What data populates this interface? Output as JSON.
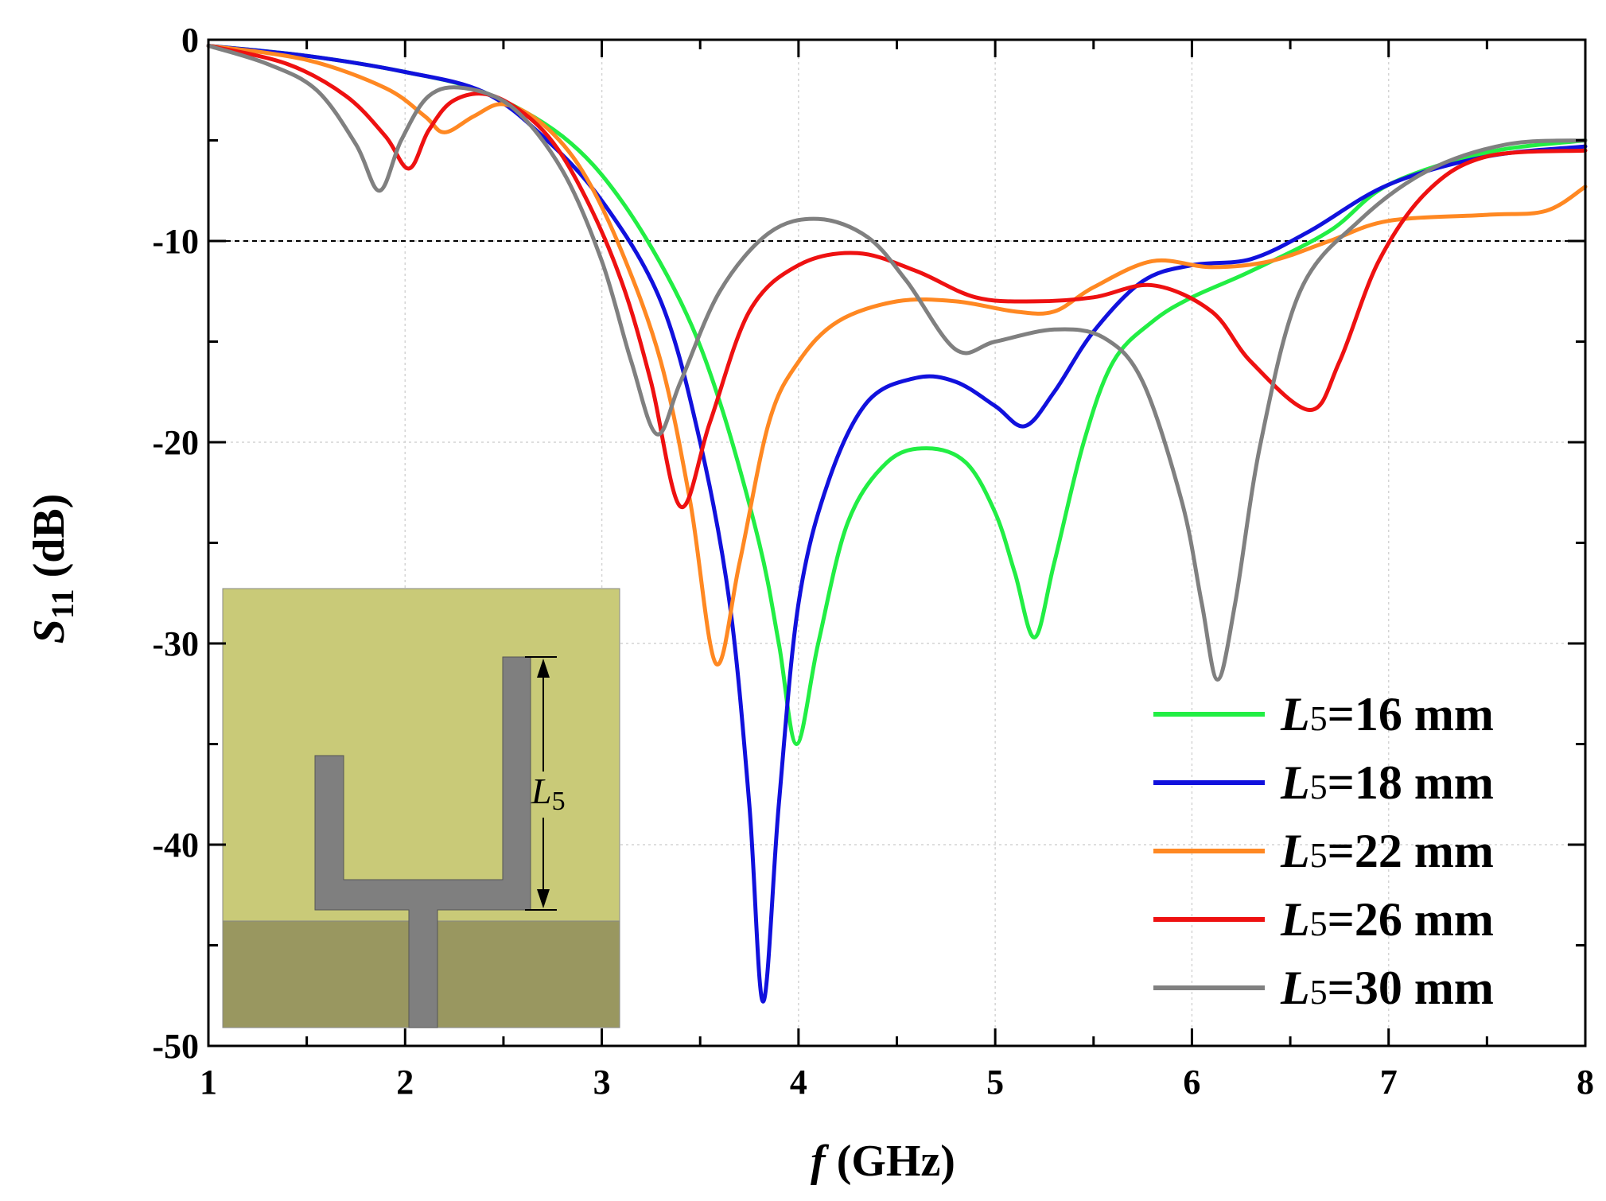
{
  "chart_data": {
    "type": "line",
    "title": "",
    "xlabel": "f (GHz)",
    "xlabel_italic": "f",
    "xlabel_rest": " (GHz)",
    "ylabel_main": "S",
    "ylabel_sub": "11",
    "ylabel_rest": " (dB)",
    "xlim": [
      1,
      8
    ],
    "ylim": [
      -50,
      0
    ],
    "xticks": [
      1,
      2,
      3,
      4,
      5,
      6,
      7,
      8
    ],
    "yticks": [
      0,
      -10,
      -20,
      -30,
      -40,
      -50
    ],
    "xtick_labels": [
      "1",
      "2",
      "3",
      "4",
      "5",
      "6",
      "7",
      "8"
    ],
    "ytick_labels": [
      "0",
      "-10",
      "-20",
      "-30",
      "-40",
      "-50"
    ],
    "reference_line_y": -10,
    "grid": true,
    "legend_position": "bottom-right",
    "series": [
      {
        "name": "L5=16 mm",
        "param": "L",
        "sub": "5",
        "value": "=16 mm",
        "color": "#22ee44",
        "points": [
          [
            1,
            -0.3
          ],
          [
            1.5,
            -0.8
          ],
          [
            2,
            -1.6
          ],
          [
            2.4,
            -2.6
          ],
          [
            2.8,
            -4.8
          ],
          [
            3.1,
            -8
          ],
          [
            3.4,
            -13
          ],
          [
            3.6,
            -18
          ],
          [
            3.8,
            -25
          ],
          [
            3.9,
            -30
          ],
          [
            3.99,
            -35
          ],
          [
            4.1,
            -30
          ],
          [
            4.25,
            -24
          ],
          [
            4.45,
            -21
          ],
          [
            4.65,
            -20.3
          ],
          [
            4.85,
            -21
          ],
          [
            5.0,
            -23.5
          ],
          [
            5.1,
            -26.5
          ],
          [
            5.2,
            -29.7
          ],
          [
            5.3,
            -26
          ],
          [
            5.45,
            -20
          ],
          [
            5.6,
            -16
          ],
          [
            5.8,
            -14
          ],
          [
            6.0,
            -12.8
          ],
          [
            6.3,
            -11.5
          ],
          [
            6.7,
            -9.5
          ],
          [
            7.0,
            -7.2
          ],
          [
            7.5,
            -5.6
          ],
          [
            8,
            -5
          ]
        ]
      },
      {
        "name": "L5=18 mm",
        "param": "L",
        "sub": "5",
        "value": "=18 mm",
        "color": "#1111dd",
        "points": [
          [
            1,
            -0.3
          ],
          [
            1.5,
            -0.8
          ],
          [
            2,
            -1.6
          ],
          [
            2.4,
            -2.6
          ],
          [
            2.7,
            -4.8
          ],
          [
            3.0,
            -8
          ],
          [
            3.3,
            -13
          ],
          [
            3.5,
            -20
          ],
          [
            3.65,
            -28
          ],
          [
            3.75,
            -38
          ],
          [
            3.82,
            -47.8
          ],
          [
            3.9,
            -38
          ],
          [
            4.0,
            -28
          ],
          [
            4.15,
            -22
          ],
          [
            4.35,
            -18
          ],
          [
            4.6,
            -16.8
          ],
          [
            4.8,
            -17
          ],
          [
            5.0,
            -18.2
          ],
          [
            5.15,
            -19.2
          ],
          [
            5.3,
            -17.5
          ],
          [
            5.5,
            -14.5
          ],
          [
            5.75,
            -12
          ],
          [
            6.0,
            -11.2
          ],
          [
            6.3,
            -10.9
          ],
          [
            6.6,
            -9.5
          ],
          [
            7.0,
            -7.2
          ],
          [
            7.5,
            -5.8
          ],
          [
            8,
            -5.3
          ]
        ]
      },
      {
        "name": "L5=22 mm",
        "param": "L",
        "sub": "5",
        "value": "=22 mm",
        "color": "#ff8822",
        "points": [
          [
            1,
            -0.3
          ],
          [
            1.5,
            -1
          ],
          [
            1.9,
            -2.4
          ],
          [
            2.1,
            -3.8
          ],
          [
            2.2,
            -4.6
          ],
          [
            2.35,
            -3.8
          ],
          [
            2.5,
            -3.2
          ],
          [
            2.7,
            -4.2
          ],
          [
            2.9,
            -6.5
          ],
          [
            3.1,
            -10.5
          ],
          [
            3.3,
            -16
          ],
          [
            3.45,
            -23
          ],
          [
            3.58,
            -31
          ],
          [
            3.7,
            -26
          ],
          [
            3.85,
            -19
          ],
          [
            4.0,
            -16
          ],
          [
            4.2,
            -14
          ],
          [
            4.5,
            -13
          ],
          [
            4.8,
            -13
          ],
          [
            5.1,
            -13.5
          ],
          [
            5.3,
            -13.5
          ],
          [
            5.5,
            -12.3
          ],
          [
            5.8,
            -11
          ],
          [
            6.1,
            -11.3
          ],
          [
            6.4,
            -11
          ],
          [
            6.7,
            -10
          ],
          [
            7.0,
            -9
          ],
          [
            7.5,
            -8.7
          ],
          [
            7.8,
            -8.5
          ],
          [
            8,
            -7.3
          ]
        ]
      },
      {
        "name": "L5=26 mm",
        "param": "L",
        "sub": "5",
        "value": "=26 mm",
        "color": "#ee1111",
        "points": [
          [
            1,
            -0.3
          ],
          [
            1.4,
            -1.2
          ],
          [
            1.7,
            -2.8
          ],
          [
            1.9,
            -4.8
          ],
          [
            2.02,
            -6.4
          ],
          [
            2.12,
            -4.5
          ],
          [
            2.25,
            -3
          ],
          [
            2.45,
            -2.8
          ],
          [
            2.7,
            -4.5
          ],
          [
            2.9,
            -7.5
          ],
          [
            3.1,
            -12
          ],
          [
            3.25,
            -17
          ],
          [
            3.4,
            -23.2
          ],
          [
            3.55,
            -19
          ],
          [
            3.75,
            -13.5
          ],
          [
            4.0,
            -11.2
          ],
          [
            4.3,
            -10.6
          ],
          [
            4.6,
            -11.5
          ],
          [
            4.9,
            -12.8
          ],
          [
            5.2,
            -13
          ],
          [
            5.5,
            -12.8
          ],
          [
            5.8,
            -12.2
          ],
          [
            6.1,
            -13.5
          ],
          [
            6.3,
            -16
          ],
          [
            6.6,
            -18.4
          ],
          [
            6.75,
            -16
          ],
          [
            6.95,
            -11
          ],
          [
            7.2,
            -7.5
          ],
          [
            7.5,
            -5.8
          ],
          [
            8,
            -5.5
          ]
        ]
      },
      {
        "name": "L5=30 mm",
        "param": "L",
        "sub": "5",
        "value": "=30 mm",
        "color": "#808080",
        "points": [
          [
            1,
            -0.3
          ],
          [
            1.3,
            -1.2
          ],
          [
            1.55,
            -2.5
          ],
          [
            1.75,
            -5.2
          ],
          [
            1.87,
            -7.5
          ],
          [
            1.98,
            -5
          ],
          [
            2.12,
            -2.8
          ],
          [
            2.3,
            -2.4
          ],
          [
            2.55,
            -3.4
          ],
          [
            2.8,
            -6.5
          ],
          [
            3.0,
            -11
          ],
          [
            3.15,
            -16
          ],
          [
            3.28,
            -19.6
          ],
          [
            3.4,
            -17
          ],
          [
            3.6,
            -12.5
          ],
          [
            3.85,
            -9.6
          ],
          [
            4.1,
            -8.9
          ],
          [
            4.35,
            -9.8
          ],
          [
            4.55,
            -12
          ],
          [
            4.8,
            -15.4
          ],
          [
            5.0,
            -15
          ],
          [
            5.3,
            -14.4
          ],
          [
            5.55,
            -14.8
          ],
          [
            5.75,
            -17
          ],
          [
            5.95,
            -23
          ],
          [
            6.05,
            -28
          ],
          [
            6.13,
            -31.8
          ],
          [
            6.22,
            -28
          ],
          [
            6.35,
            -20
          ],
          [
            6.55,
            -12.5
          ],
          [
            6.85,
            -9
          ],
          [
            7.2,
            -6.5
          ],
          [
            7.6,
            -5.2
          ],
          [
            8,
            -5
          ]
        ]
      }
    ],
    "inset": {
      "label_main": "L",
      "label_sub": "5",
      "colors": {
        "substrate": "#c9ca78",
        "ground": "#999760",
        "patch": "#7f7f7f"
      }
    }
  }
}
